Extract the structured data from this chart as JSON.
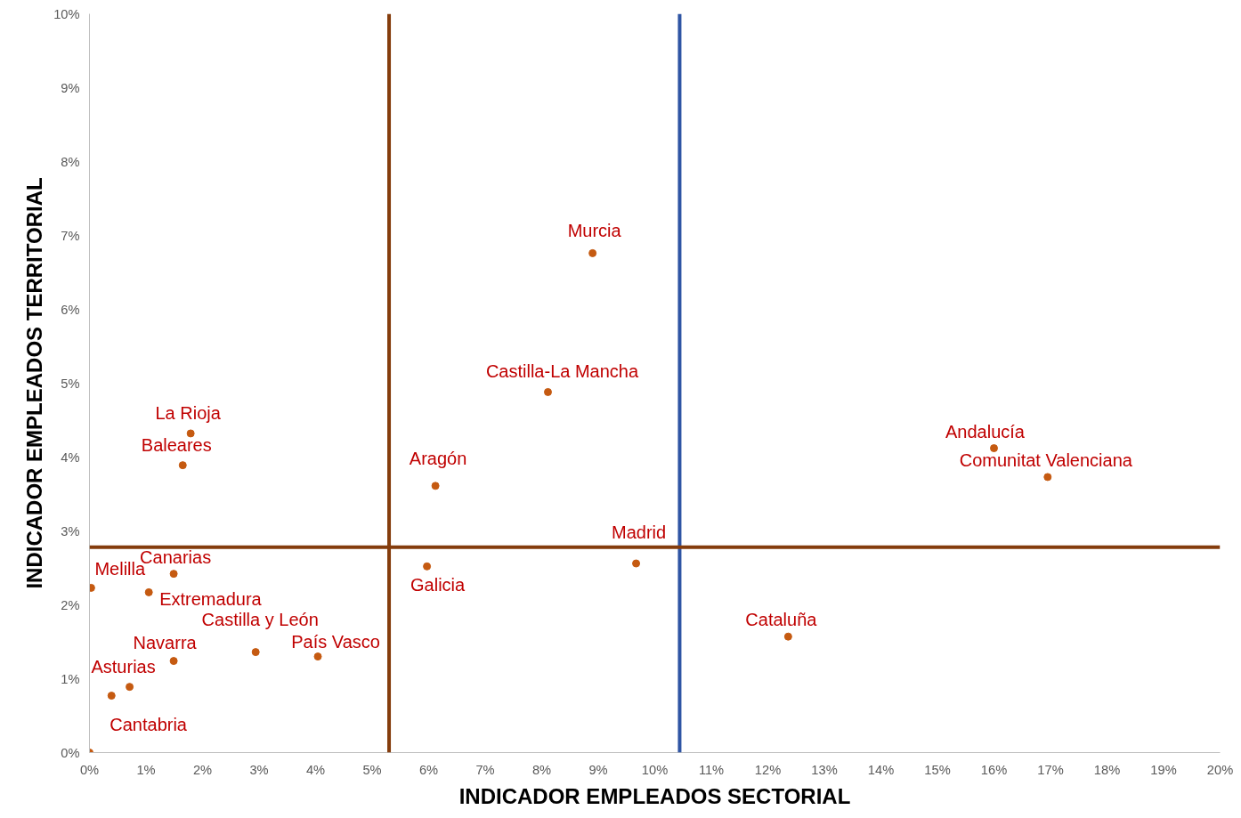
{
  "chart_data": {
    "type": "scatter",
    "xlabel": "INDICADOR EMPLEADOS SECTORIAL",
    "ylabel": "INDICADOR EMPLEADOS TERRITORIAL",
    "x": [
      0.03,
      0,
      1.49,
      1.05,
      1.79,
      1.65,
      1.49,
      2.94,
      4.04,
      0.71,
      0.39,
      6.12,
      5.97,
      8.11,
      8.9,
      9.67,
      12.36,
      16.0,
      16.95
    ],
    "series": [
      {
        "color": "#c55a11",
        "values": [
          2.23,
          0,
          2.42,
          2.17,
          4.32,
          3.89,
          1.24,
          1.36,
          1.3,
          0.89,
          0.77,
          3.61,
          2.52,
          4.88,
          6.76,
          2.56,
          1.57,
          4.12,
          3.73
        ]
      }
    ],
    "annotations": [
      {
        "text": "Melilla",
        "x": 0.03,
        "y": 2.23
      },
      {
        "text": "Canarias",
        "x": 1.49,
        "y": 2.42
      },
      {
        "text": "Extremadura",
        "x": 1.05,
        "y": 2.17
      },
      {
        "text": "La Rioja",
        "x": 1.79,
        "y": 4.32
      },
      {
        "text": "Baleares",
        "x": 1.65,
        "y": 3.89
      },
      {
        "text": "Navarra",
        "x": 1.49,
        "y": 1.24
      },
      {
        "text": "Castilla y León",
        "x": 2.94,
        "y": 1.36
      },
      {
        "text": "País Vasco",
        "x": 4.04,
        "y": 1.3
      },
      {
        "text": "Asturias",
        "x": 0.71,
        "y": 0.89
      },
      {
        "text": "Cantabria",
        "x": 0.39,
        "y": 0.77
      },
      {
        "text": "Aragón",
        "x": 6.12,
        "y": 3.61
      },
      {
        "text": "Galicia",
        "x": 5.97,
        "y": 2.52
      },
      {
        "text": "Castilla-La Mancha",
        "x": 8.11,
        "y": 4.88
      },
      {
        "text": "Murcia",
        "x": 8.9,
        "y": 6.76
      },
      {
        "text": "Madrid",
        "x": 9.67,
        "y": 2.56
      },
      {
        "text": "Cataluña",
        "x": 12.36,
        "y": 1.57
      },
      {
        "text": "Andalucía",
        "x": 16.0,
        "y": 4.12
      },
      {
        "text": "Comunitat Valenciana",
        "x": 16.95,
        "y": 3.73
      }
    ],
    "ref_lines": [
      {
        "axis": "x",
        "value": 5.3,
        "color": "#843c0c"
      },
      {
        "axis": "x",
        "value": 10.44,
        "color": "#2f55a4"
      },
      {
        "axis": "y",
        "value": 2.78,
        "color": "#843c0c"
      }
    ],
    "xlim": [
      0,
      20
    ],
    "ylim": [
      0,
      10
    ],
    "xticks": [
      {
        "value": 0,
        "label": "0%"
      },
      {
        "value": 1,
        "label": "1%"
      },
      {
        "value": 2,
        "label": "2%"
      },
      {
        "value": 3,
        "label": "3%"
      },
      {
        "value": 4,
        "label": "4%"
      },
      {
        "value": 5,
        "label": "5%"
      },
      {
        "value": 6,
        "label": "6%"
      },
      {
        "value": 7,
        "label": "7%"
      },
      {
        "value": 8,
        "label": "8%"
      },
      {
        "value": 9,
        "label": "9%"
      },
      {
        "value": 10,
        "label": "10%"
      },
      {
        "value": 11,
        "label": "11%"
      },
      {
        "value": 12,
        "label": "12%"
      },
      {
        "value": 13,
        "label": "13%"
      },
      {
        "value": 14,
        "label": "14%"
      },
      {
        "value": 15,
        "label": "15%"
      },
      {
        "value": 16,
        "label": "16%"
      },
      {
        "value": 17,
        "label": "17%"
      },
      {
        "value": 18,
        "label": "18%"
      },
      {
        "value": 19,
        "label": "19%"
      },
      {
        "value": 20,
        "label": "20%"
      }
    ],
    "yticks": [
      {
        "value": 0,
        "label": "0%"
      },
      {
        "value": 1,
        "label": "1%"
      },
      {
        "value": 2,
        "label": "2%"
      },
      {
        "value": 3,
        "label": "3%"
      },
      {
        "value": 4,
        "label": "4%"
      },
      {
        "value": 5,
        "label": "5%"
      },
      {
        "value": 6,
        "label": "6%"
      },
      {
        "value": 7,
        "label": "7%"
      },
      {
        "value": 8,
        "label": "8%"
      },
      {
        "value": 9,
        "label": "9%"
      },
      {
        "value": 10,
        "label": "10%"
      }
    ],
    "grid": false,
    "marker": "circle"
  }
}
